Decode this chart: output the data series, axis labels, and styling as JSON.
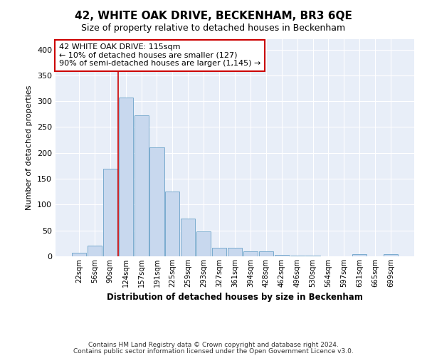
{
  "title": "42, WHITE OAK DRIVE, BECKENHAM, BR3 6QE",
  "subtitle": "Size of property relative to detached houses in Beckenham",
  "xlabel": "Distribution of detached houses by size in Beckenham",
  "ylabel": "Number of detached properties",
  "footer_line1": "Contains HM Land Registry data © Crown copyright and database right 2024.",
  "footer_line2": "Contains public sector information licensed under the Open Government Licence v3.0.",
  "categories": [
    "22sqm",
    "56sqm",
    "90sqm",
    "124sqm",
    "157sqm",
    "191sqm",
    "225sqm",
    "259sqm",
    "293sqm",
    "327sqm",
    "361sqm",
    "394sqm",
    "428sqm",
    "462sqm",
    "496sqm",
    "530sqm",
    "564sqm",
    "597sqm",
    "631sqm",
    "665sqm",
    "699sqm"
  ],
  "values": [
    7,
    21,
    170,
    307,
    272,
    210,
    125,
    73,
    48,
    16,
    16,
    9,
    9,
    3,
    1,
    1,
    0,
    0,
    4,
    0,
    4
  ],
  "bar_color": "#c8d8ee",
  "bar_edge_color": "#7aabce",
  "figure_bg": "#ffffff",
  "axes_bg": "#e8eef8",
  "grid_color": "#ffffff",
  "vline_color": "#cc0000",
  "vline_x_index": 2.5,
  "annotation_text": "42 WHITE OAK DRIVE: 115sqm\n← 10% of detached houses are smaller (127)\n90% of semi-detached houses are larger (1,145) →",
  "annotation_box_facecolor": "#ffffff",
  "annotation_box_edgecolor": "#cc0000",
  "ylim": [
    0,
    420
  ],
  "yticks": [
    0,
    50,
    100,
    150,
    200,
    250,
    300,
    350,
    400
  ]
}
